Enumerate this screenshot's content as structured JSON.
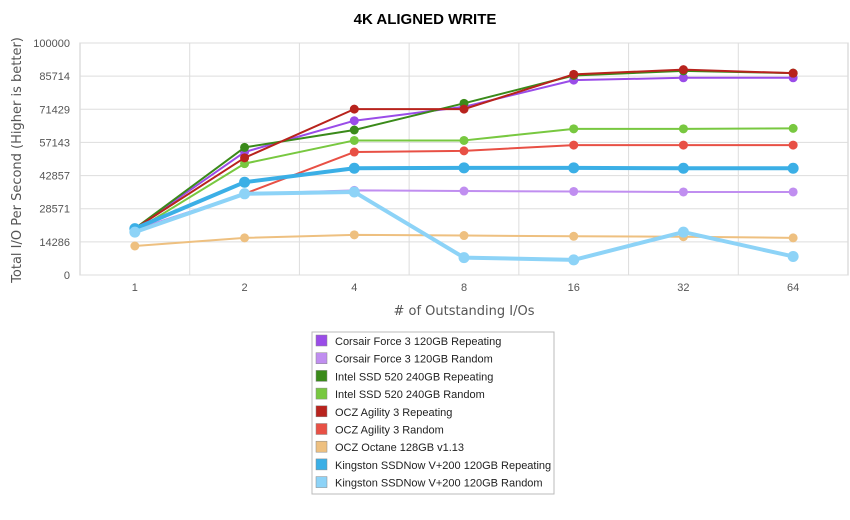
{
  "chart_data": {
    "type": "line",
    "title": "4K ALIGNED WRITE",
    "xlabel": "# of Outstanding I/Os",
    "ylabel": "Total I/O Per Second (Higher is better)",
    "categories": [
      "1",
      "2",
      "4",
      "8",
      "16",
      "32",
      "64"
    ],
    "yticks": [
      "0",
      "14286",
      "28571",
      "42857",
      "57143",
      "71429",
      "85714",
      "100000"
    ],
    "ylim": [
      0,
      100000
    ],
    "grid": true,
    "legend_position": "bottom",
    "series": [
      {
        "name": "Corsair Force 3 120GB Repeating",
        "color": "#9a4ce8",
        "values": [
          20000,
          53000,
          66500,
          72500,
          84000,
          85000,
          85000
        ]
      },
      {
        "name": "Corsair Force 3 120GB Random",
        "color": "#c08ef0",
        "values": [
          19500,
          35000,
          36500,
          36200,
          36000,
          35800,
          35800
        ]
      },
      {
        "name": "Intel SSD 520 240GB Repeating",
        "color": "#3a8a1a",
        "values": [
          20000,
          55000,
          62500,
          74000,
          86000,
          88000,
          87000
        ]
      },
      {
        "name": "Intel SSD 520 240GB Random",
        "color": "#78c840",
        "values": [
          19000,
          48000,
          58000,
          58000,
          63000,
          63000,
          63200
        ]
      },
      {
        "name": "OCZ Agility 3 Repeating",
        "color": "#b8231d",
        "values": [
          20000,
          50500,
          71500,
          71500,
          86500,
          88500,
          87000
        ]
      },
      {
        "name": "OCZ Agility 3 Random",
        "color": "#e85045",
        "values": [
          19000,
          35000,
          53000,
          53500,
          56000,
          56000,
          56000
        ]
      },
      {
        "name": "OCZ Octane 128GB v1.13",
        "color": "#eec080",
        "values": [
          12500,
          16000,
          17300,
          17000,
          16700,
          16500,
          16000
        ]
      },
      {
        "name": "Kingston SSDNow V+200 120GB Repeating",
        "color": "#3bafe6",
        "values": [
          20000,
          40000,
          46000,
          46200,
          46200,
          46000,
          46000
        ]
      },
      {
        "name": "Kingston SSDNow V+200 120GB Random",
        "color": "#8dd3f7",
        "values": [
          18500,
          35000,
          35800,
          7500,
          6500,
          18500,
          8000
        ]
      }
    ]
  }
}
